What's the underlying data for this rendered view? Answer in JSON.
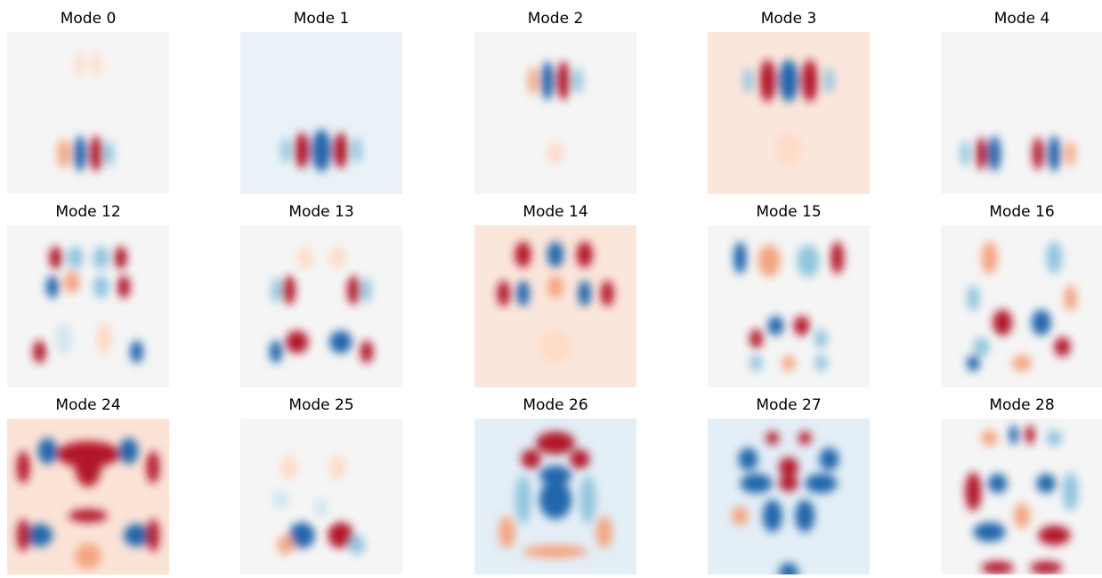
{
  "panels": [
    {
      "title": "Mode 0"
    },
    {
      "title": "Mode 1"
    },
    {
      "title": "Mode 2"
    },
    {
      "title": "Mode 3"
    },
    {
      "title": "Mode 4"
    },
    {
      "title": "Mode 12"
    },
    {
      "title": "Mode 13"
    },
    {
      "title": "Mode 14"
    },
    {
      "title": "Mode 15"
    },
    {
      "title": "Mode 16"
    },
    {
      "title": "Mode 24"
    },
    {
      "title": "Mode 25"
    },
    {
      "title": "Mode 26"
    },
    {
      "title": "Mode 27"
    },
    {
      "title": "Mode 28"
    }
  ]
}
